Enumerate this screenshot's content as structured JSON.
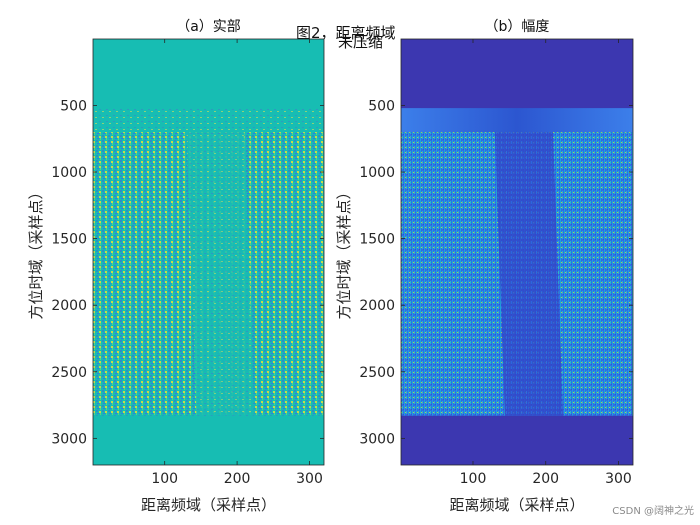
{
  "figure": {
    "title": "图2，距离频域",
    "subtitle": "未压缩",
    "watermark": "CSDN @阔神之光"
  },
  "chart_data": [
    {
      "type": "heatmap",
      "title": "（a）实部",
      "xlabel": "距离频域（采样点）",
      "ylabel": "方位时域（采样点）",
      "xlim": [
        1,
        320
      ],
      "ylim": [
        1,
        3200
      ],
      "y_reversed": true,
      "xticks": [
        100,
        200,
        300
      ],
      "yticks": [
        500,
        1000,
        1500,
        2000,
        2500,
        3000
      ],
      "colors": {
        "background": "#17BDB3",
        "stripe_a": "#2E8FC4",
        "stripe_b": "#C9D64C",
        "stripe_c": "#3A6FE8"
      },
      "signal_rows": [
        520,
        2830
      ],
      "dense_rows": [
        700,
        2830
      ],
      "dim_column_band": [
        130,
        210
      ],
      "grid": false
    },
    {
      "type": "heatmap",
      "title": "（b）幅度",
      "xlabel": "距离频域（采样点）",
      "ylabel": "方位时域（采样点）",
      "xlim": [
        1,
        320
      ],
      "ylim": [
        1,
        3200
      ],
      "y_reversed": true,
      "xticks": [
        100,
        200,
        300
      ],
      "yticks": [
        500,
        1000,
        1500,
        2000,
        2500,
        3000
      ],
      "colors": {
        "background": "#3C37B0",
        "mid": "#2E6FE6",
        "bright": "#1FA2DB",
        "peak": "#A6D65A"
      },
      "signal_rows": [
        520,
        2830
      ],
      "dense_rows": [
        700,
        2830
      ],
      "dim_column_band": [
        130,
        210
      ],
      "grid": false
    }
  ]
}
